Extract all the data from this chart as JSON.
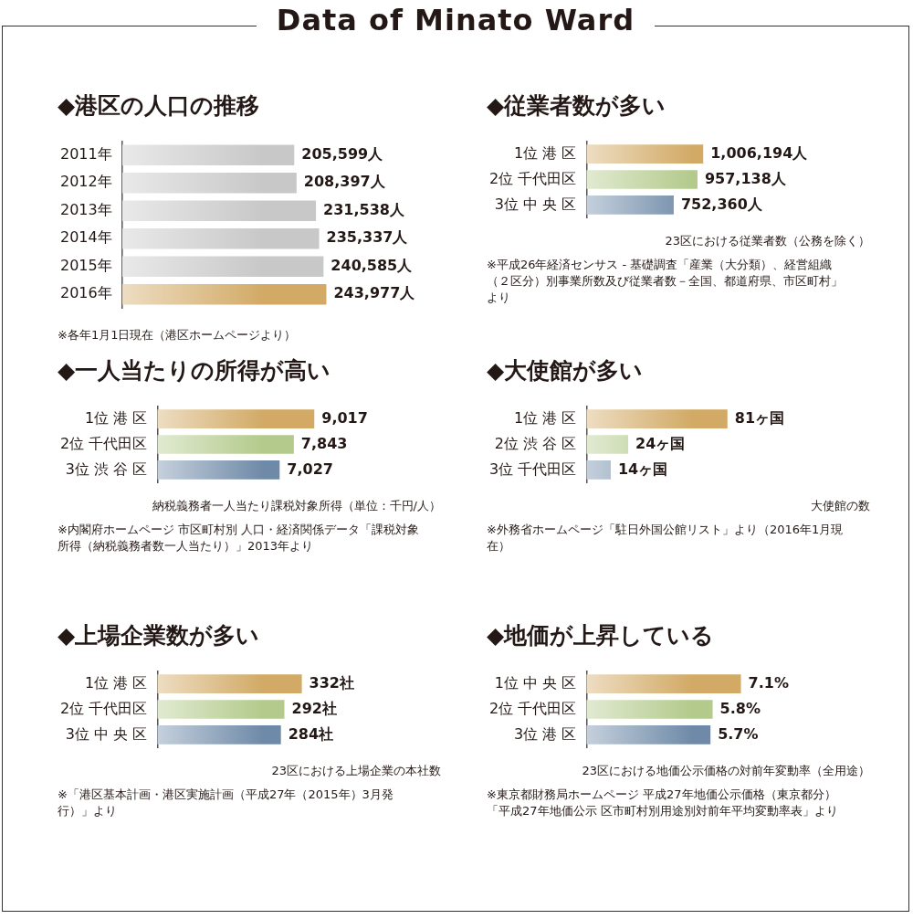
{
  "chart_data": [
    {
      "type": "other",
      "title": "Data of Minato Ward"
    },
    {
      "type": "bar",
      "orientation": "horizontal",
      "title": "◆港区の人口の推移",
      "categories": [
        "2011年",
        "2012年",
        "2013年",
        "2014年",
        "2015年",
        "2016年"
      ],
      "values": [
        205599,
        208397,
        231538,
        235337,
        240585,
        243977
      ],
      "value_labels": [
        "205,599人",
        "208,397人",
        "231,538人",
        "235,337人",
        "240,585人",
        "243,977人"
      ],
      "colors": [
        "#c8c8c8",
        "#c8c8c8",
        "#c8c8c8",
        "#c8c8c8",
        "#c8c8c8",
        "#d2aa66"
      ],
      "tick_labels": "y",
      "grid": false,
      "legend": false,
      "annotations": [
        "※各年1月1日現在（港区ホームページより）"
      ]
    },
    {
      "type": "bar",
      "orientation": "horizontal",
      "title": "◆従業者数が多い",
      "categories": [
        "1位 港 区",
        "2位 千代田区",
        "3位 中 央 区"
      ],
      "values": [
        1006194,
        957138,
        752360
      ],
      "value_labels": [
        "1,006,194人",
        "957,138人",
        "752,360人"
      ],
      "colors": [
        "#d2aa66",
        "#b3ca8c",
        "#6f8aa8"
      ],
      "tick_labels": "y",
      "grid": false,
      "legend": false,
      "annotations": [
        "23区における従業者数（公務を除く）",
        "※平成26年経済センサス - 基礎調査「産業（大分類）、経営組織（２区分）別事業所数及び従業者数－全国、都道府県、市区町村」より"
      ]
    },
    {
      "type": "bar",
      "orientation": "horizontal",
      "title": "◆一人当たりの所得が高い",
      "categories": [
        "1位 港 区",
        "2位 千代田区",
        "3位 渋 谷 区"
      ],
      "values": [
        9017,
        7843,
        7027
      ],
      "value_labels": [
        "9,017",
        "7,843",
        "7,027"
      ],
      "colors": [
        "#d2aa66",
        "#b3ca8c",
        "#6f8aa8"
      ],
      "tick_labels": "y",
      "grid": false,
      "legend": false,
      "annotations": [
        "納税義務者一人当たり課税対象所得（単位：千円/人）",
        "※内閣府ホームページ 市区町村別 人口・経済関係データ「課税対象所得（納税義務者数一人当たり）」2013年より"
      ]
    },
    {
      "type": "bar",
      "orientation": "horizontal",
      "title": "◆大使館が多い",
      "categories": [
        "1位 港 区",
        "2位 渋 谷 区",
        "3位 千代田区"
      ],
      "values": [
        81,
        24,
        14
      ],
      "value_labels": [
        "81ヶ国",
        "24ヶ国",
        "14ヶ国"
      ],
      "colors": [
        "#d2aa66",
        "#b3ca8c",
        "#6f8aa8"
      ],
      "tick_labels": "y",
      "grid": false,
      "legend": false,
      "annotations": [
        "大使館の数",
        "※外務省ホームページ「駐日外国公館リスト」より（2016年1月現在）"
      ]
    },
    {
      "type": "bar",
      "orientation": "horizontal",
      "title": "◆上場企業数が多い",
      "categories": [
        "1位 港 区",
        "2位 千代田区",
        "3位 中 央 区"
      ],
      "values": [
        332,
        292,
        284
      ],
      "value_labels": [
        "332社",
        "292社",
        "284社"
      ],
      "colors": [
        "#d2aa66",
        "#b3ca8c",
        "#6f8aa8"
      ],
      "tick_labels": "y",
      "grid": false,
      "legend": false,
      "annotations": [
        "23区における上場企業の本社数",
        "※「港区基本計画・港区実施計画（平成27年（2015年）3月発行）」より"
      ]
    },
    {
      "type": "bar",
      "orientation": "horizontal",
      "title": "◆地価が上昇している",
      "categories": [
        "1位 中 央 区",
        "2位 千代田区",
        "3位 港 区"
      ],
      "values": [
        7.1,
        5.8,
        5.7
      ],
      "value_labels": [
        "7.1%",
        "5.8%",
        "5.7%"
      ],
      "colors": [
        "#d2aa66",
        "#b3ca8c",
        "#6f8aa8"
      ],
      "tick_labels": "y",
      "grid": false,
      "legend": false,
      "annotations": [
        "23区における地価公示価格の対前年変動率（全用途）",
        "※東京都財務局ホームページ 平成27年地価公示価格（東京都分）「平成27年地価公示 区市町村別用途別対前年平均変動率表」より"
      ]
    }
  ]
}
